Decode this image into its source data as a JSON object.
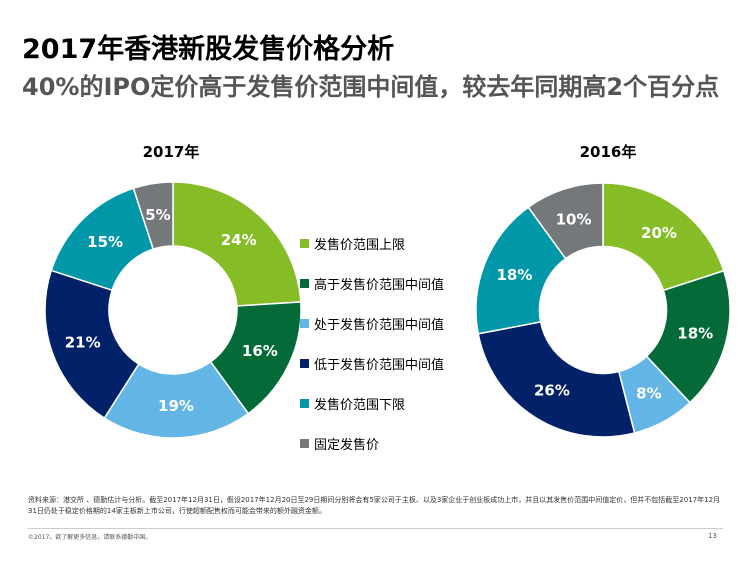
{
  "title": "2017年香港新股发售价格分析",
  "subtitle": "40%的IPO定价高于发售价范围中间值，较去年同期高2个百分点",
  "chart_data": [
    {
      "type": "pie",
      "title": "2017年",
      "categories": [
        "发售价范围上限",
        "高于发售价范围中间值",
        "处于发售价范围中间值",
        "低于发售价范围中间值",
        "发售价范围下限",
        "固定发售价"
      ],
      "values": [
        24,
        16,
        19,
        21,
        15,
        5
      ],
      "labels": [
        "24%",
        "16%",
        "19%",
        "21%",
        "15%",
        "5%"
      ]
    },
    {
      "type": "pie",
      "title": "2016年",
      "categories": [
        "发售价范围上限",
        "高于发售价范围中间值",
        "处于发售价范围中间值",
        "低于发售价范围中间值",
        "发售价范围下限",
        "固定发售价"
      ],
      "values": [
        20,
        18,
        8,
        26,
        18,
        10
      ],
      "labels": [
        "20%",
        "18%",
        "8%",
        "26%",
        "18%",
        "10%"
      ]
    }
  ],
  "legend": [
    {
      "label": "发售价范围上限",
      "color": "#86bc25"
    },
    {
      "label": "高于发售价范围中间值",
      "color": "#046a38"
    },
    {
      "label": "处于发售价范围中间值",
      "color": "#62b5e5"
    },
    {
      "label": "低于发售价范围中间值",
      "color": "#012169"
    },
    {
      "label": "发售价范围下限",
      "color": "#0097a9"
    },
    {
      "label": "固定发售价",
      "color": "#75787b"
    }
  ],
  "footnote": "资料来源：港交所 、德勤估计与分析。截至2017年12月31日，假设2017年12月20日至29日期间分别将会有5家公司于主板、以及3家企业于创业板成功上市，并且以其发售价范围中间值定价，但并不包括截至2017年12月31日仍处于稳定价格期的14家主板新上市公司，行使超额配售权而可能会带来的额外融资金额。",
  "copyright": "©2017。欲了解更多信息，请联系德勤中国。",
  "page_number": "13"
}
